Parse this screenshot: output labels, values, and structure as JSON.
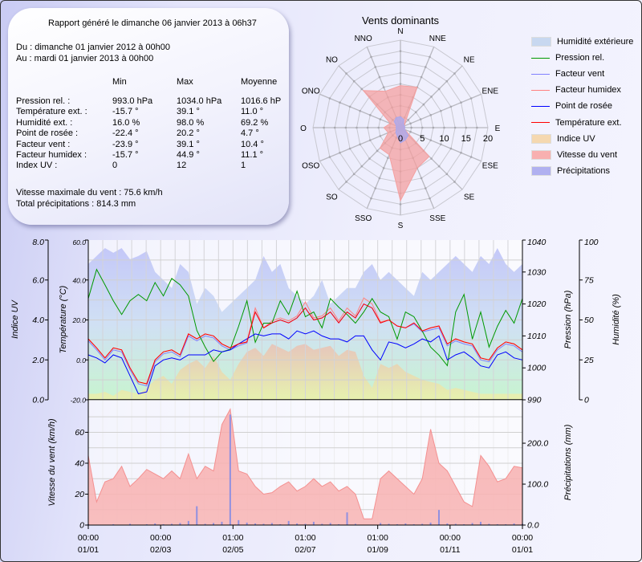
{
  "report": {
    "generated": "Rapport généré le dimanche 06 janvier 2013 à 06h37",
    "from": "Du : dimanche 01 janvier 2012 à 00h00",
    "to": "Au : mardi 01 janvier 2013 à 00h00",
    "columns": [
      "Min",
      "Max",
      "Moyenne"
    ],
    "rows": [
      {
        "label": "Pression rel. :",
        "min": "993.0 hPa",
        "max": "1034.0 hPa",
        "avg": "1016.6 hPa"
      },
      {
        "label": "Température ext. :",
        "min": "-15.7 °",
        "max": "39.1 °",
        "avg": "11.0 °"
      },
      {
        "label": "Humidité ext. :",
        "min": "16.0 %",
        "max": "98.0 %",
        "avg": "69.2 %"
      },
      {
        "label": "Point de rosée :",
        "min": "-22.4 °",
        "max": "20.2 °",
        "avg": "4.7 °"
      },
      {
        "label": "Facteur vent :",
        "min": "-23.9 °",
        "max": "39.1 °",
        "avg": "10.4 °"
      },
      {
        "label": "Facteur humidex :",
        "min": "-15.7 °",
        "max": "44.9 °",
        "avg": "11.1 °"
      },
      {
        "label": "Index UV :",
        "min": "0",
        "max": "12",
        "avg": "1"
      }
    ],
    "max_wind": "Vitesse maximale du vent : 75.6 km/h",
    "total_rain": "Total précipitations : 814.3 mm"
  },
  "legend": [
    {
      "label": "Humidité extérieure",
      "kind": "area",
      "color": "#c8d8f0"
    },
    {
      "label": "Pression rel.",
      "kind": "line",
      "color": "#009900"
    },
    {
      "label": "Facteur vent",
      "kind": "line",
      "color": "#8080ff"
    },
    {
      "label": "Facteur humidex",
      "kind": "line",
      "color": "#ff8080"
    },
    {
      "label": "Point de rosée",
      "kind": "line",
      "color": "#0000ff"
    },
    {
      "label": "Température ext.",
      "kind": "line",
      "color": "#ff0000"
    },
    {
      "label": "Indice UV",
      "kind": "area",
      "color": "#f5d8b0"
    },
    {
      "label": "Vitesse du vent",
      "kind": "area",
      "color": "#f8b0b0"
    },
    {
      "label": "Précipitations",
      "kind": "area",
      "color": "#b0b0f0"
    }
  ],
  "chart_data": [
    {
      "type": "radar",
      "title": "Vents dominants",
      "directions": [
        "N",
        "NNE",
        "NE",
        "ENE",
        "E",
        "ESE",
        "SE",
        "SSE",
        "S",
        "SSO",
        "SO",
        "OSO",
        "O",
        "ONO",
        "NO",
        "NNO"
      ],
      "rlim": [
        0,
        20
      ],
      "rticks": [
        "0",
        "5",
        "10",
        "15",
        "20"
      ],
      "series": [
        {
          "name": "Vitesse du vent",
          "color": "#f4a0a0",
          "values": [
            9.6,
            10,
            1.5,
            1,
            1,
            1,
            9.3,
            10,
            16.7,
            6.7,
            6.6,
            3,
            3.8,
            2.5,
            12,
            9
          ]
        },
        {
          "name": "Précipitations",
          "color": "#a8a8f0",
          "values": [
            2.5,
            2,
            1,
            1,
            1,
            1,
            2.5,
            3,
            3.5,
            2,
            1.5,
            1,
            1,
            1,
            2,
            2.5
          ]
        }
      ]
    },
    {
      "type": "line",
      "x_ticks": [
        [
          "00:00",
          "01/01"
        ],
        [
          "00:00",
          "02/03"
        ],
        [
          "01:00",
          "02/05"
        ],
        [
          "01:00",
          "02/07"
        ],
        [
          "01:00",
          "01/09"
        ],
        [
          "00:00",
          "01/11"
        ],
        [
          "00:00",
          "01/01"
        ]
      ],
      "x_range": [
        "01/01/2012",
        "01/01/2013"
      ],
      "grid": true,
      "axes": {
        "uv": {
          "label": "Indice UV",
          "ylim": [
            0,
            8
          ],
          "ticks": [
            "0.0",
            "2.0",
            "4.0",
            "6.0",
            "8.0"
          ]
        },
        "temp": {
          "label": "Température (°C)",
          "ylim": [
            -20,
            60
          ],
          "ticks": [
            "-20.0",
            "0.0",
            "20.0",
            "40.0",
            "60.0"
          ]
        },
        "pressure": {
          "label": "Pression (hPa)",
          "ylim": [
            990,
            1040
          ],
          "ticks": [
            "990",
            "1000",
            "1010",
            "1020",
            "1030",
            "1040"
          ]
        },
        "humidity": {
          "label": "Humidité (%)",
          "ylim": [
            0,
            100
          ],
          "ticks": [
            "0",
            "25",
            "50",
            "75",
            "100"
          ]
        }
      },
      "series": {
        "temperature": [
          10.5,
          6,
          1,
          6,
          5,
          -4,
          -11,
          -12,
          0,
          4,
          5,
          2.5,
          13,
          10.5,
          13,
          12,
          8,
          6,
          8,
          9,
          24,
          16,
          18.5,
          20,
          18.5,
          21,
          26,
          20,
          21,
          24,
          18.5,
          24,
          21,
          28,
          26,
          18.5,
          20,
          17,
          16,
          18.5,
          14.5,
          16,
          17,
          8,
          10.5,
          9,
          8,
          1,
          0,
          6,
          9,
          8,
          5
        ],
        "dew_point": [
          2.5,
          1,
          -1.5,
          2.5,
          1,
          -8,
          -17,
          -16,
          -3,
          0,
          1,
          0,
          2.5,
          2.5,
          2.5,
          5,
          4,
          5,
          8,
          10.5,
          13,
          12,
          13,
          13,
          10.5,
          14.5,
          13,
          14.5,
          12,
          10.5,
          10.5,
          9,
          12,
          12,
          5,
          0,
          9,
          8,
          6,
          8,
          10.5,
          9,
          12,
          0,
          2.5,
          4,
          1,
          -3,
          -4,
          2.5,
          4,
          1,
          0
        ],
        "wind_chill": [
          9.5,
          5,
          0,
          5,
          4,
          -5,
          -12,
          -13,
          -1,
          3,
          4,
          1.5,
          12,
          9.5,
          12,
          11,
          7,
          5,
          7,
          8.5,
          24,
          16,
          18.5,
          20,
          18.5,
          21,
          26,
          20,
          21,
          24,
          18.5,
          24,
          21,
          28,
          26,
          18.5,
          20,
          17,
          16,
          18,
          14,
          15,
          16,
          7,
          9.5,
          8,
          7,
          0,
          -1,
          5,
          8,
          7,
          4
        ],
        "humidex": [
          10.5,
          6,
          1,
          6,
          5,
          -4,
          -11,
          -12,
          0,
          4,
          5,
          2.5,
          13,
          10.5,
          13,
          12,
          8,
          6,
          8,
          9,
          26,
          16,
          19.5,
          21,
          19.5,
          22,
          29,
          21,
          22,
          26,
          19.5,
          26,
          22,
          31,
          28,
          19,
          20,
          17,
          16,
          18.5,
          14.5,
          16,
          17,
          8,
          10.5,
          9,
          8,
          1,
          0,
          6,
          9,
          8,
          5
        ],
        "pressure": [
          1021.7,
          1030.8,
          1026,
          1021,
          1016.7,
          1021,
          1023,
          1021,
          1026.7,
          1022.5,
          1028,
          1026,
          1022.5,
          1011.7,
          1006.5,
          1002,
          1005,
          1005.8,
          1013,
          1021,
          1008,
          1014,
          1014,
          1021,
          1016.7,
          1024,
          1016,
          1017.5,
          1012.5,
          1021.7,
          1019,
          1016.7,
          1014,
          1017.5,
          1021.7,
          1017.5,
          1016,
          1009,
          1017.5,
          1016,
          1011.5,
          1006.5,
          1004,
          1000.7,
          1017.5,
          1023,
          1009,
          1017.5,
          1006.5,
          1013,
          1018,
          1014,
          1021.7
        ],
        "humidity": [
          85,
          90,
          95,
          92,
          95,
          88,
          90,
          93,
          80,
          75,
          70,
          85,
          80,
          60,
          70,
          65,
          55,
          60,
          65,
          70,
          75,
          90,
          80,
          85,
          70,
          65,
          60,
          65,
          75,
          60,
          65,
          70,
          70,
          80,
          85,
          75,
          80,
          75,
          70,
          65,
          80,
          75,
          80,
          85,
          90,
          85,
          80,
          90,
          85,
          95,
          85,
          80,
          85
        ],
        "uv": [
          0.3,
          0.3,
          0.4,
          0.2,
          0.5,
          0.4,
          0.3,
          0.6,
          1.0,
          1.2,
          0.8,
          1.5,
          1.8,
          2.0,
          1.6,
          2.2,
          1.4,
          1.0,
          1.8,
          2.4,
          2.6,
          2.2,
          2.8,
          2.6,
          2.4,
          2.7,
          2.8,
          2.5,
          2.6,
          2.7,
          2.2,
          2.5,
          2.4,
          1.2,
          0.6,
          1.8,
          1.6,
          1.8,
          1.4,
          1.2,
          1.0,
          0.9,
          0.8,
          0.5,
          0.6,
          0.5,
          0.4,
          0.3,
          0.3,
          0.3,
          0.3,
          0.3,
          0.3
        ]
      }
    },
    {
      "type": "area",
      "x_ticks": [
        [
          "00:00",
          "01/01"
        ],
        [
          "00:00",
          "02/03"
        ],
        [
          "01:00",
          "02/05"
        ],
        [
          "01:00",
          "02/07"
        ],
        [
          "01:00",
          "01/09"
        ],
        [
          "00:00",
          "01/11"
        ],
        [
          "00:00",
          "01/01"
        ]
      ],
      "grid": true,
      "axes": {
        "wind": {
          "label": "Vitesse du vent (km/h)",
          "ylim": [
            0,
            81
          ],
          "ticks": [
            "0",
            "20",
            "40",
            "60"
          ]
        },
        "rain": {
          "label": "Précipitations (mm)",
          "ylim": [
            0,
            306
          ],
          "ticks": [
            "0.0",
            "100.0",
            "200.0"
          ]
        }
      },
      "series": {
        "wind_speed": [
          45,
          15,
          28,
          30,
          38,
          25,
          30,
          36,
          33,
          30,
          35,
          30,
          46,
          30,
          38,
          35,
          65,
          75,
          35,
          33,
          25,
          20,
          21,
          25,
          28,
          22,
          25,
          30,
          25,
          28,
          22,
          25,
          20,
          4,
          4,
          30,
          35,
          30,
          25,
          20,
          30,
          62,
          40,
          35,
          25,
          15,
          12,
          45,
          38,
          28,
          30,
          38,
          37
        ],
        "precipitation": [
          2,
          1,
          1,
          2,
          1,
          3,
          1,
          2,
          4,
          2,
          3,
          5,
          10,
          46,
          3,
          5,
          8,
          270,
          12,
          6,
          4,
          3,
          5,
          2,
          10,
          4,
          3,
          8,
          3,
          5,
          2,
          31,
          3,
          0,
          0,
          5,
          3,
          2,
          4,
          2,
          3,
          6,
          37,
          4,
          3,
          2,
          5,
          8,
          3,
          2,
          2,
          4,
          3
        ]
      }
    }
  ]
}
